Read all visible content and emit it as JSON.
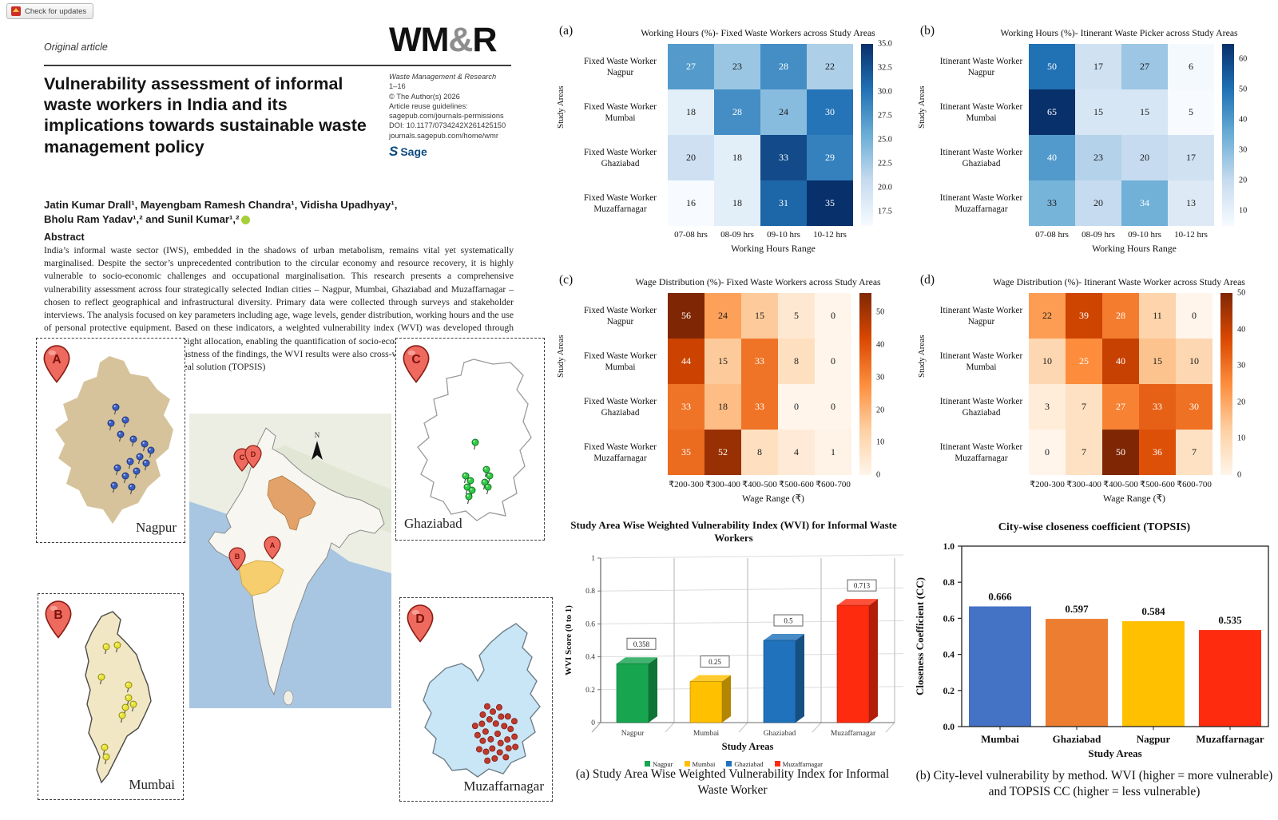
{
  "badge": {
    "label": "Check for updates"
  },
  "paper": {
    "article_type": "Original article",
    "logo": {
      "part1": "WM",
      "amp": "&",
      "part2": "R"
    },
    "journal_info": {
      "journal": "Waste Management & Research",
      "pages": "1–16",
      "copyright": "© The Author(s) 2026",
      "reuse": "Article reuse guidelines:",
      "permissions": "sagepub.com/journals-permissions",
      "doi": "DOI: 10.1177/0734242X261425150",
      "home": "journals.sagepub.com/home/wmr",
      "publisher_mark": "S",
      "publisher_name": "Sage"
    },
    "title": "Vulnerability assessment of informal waste workers in India and its implications towards sustainable waste management policy",
    "authors_line1": "Jatin Kumar Drall¹, Mayengbam Ramesh Chandra¹, Vidisha Upadhyay¹,",
    "authors_line2": "Bholu Ram Yadav¹,² and Sunil Kumar¹,²",
    "abstract_heading": "Abstract",
    "abstract_text": "India’s informal waste sector (IWS), embedded in the shadows of urban metabolism, remains vital yet systematically marginalised. Despite the sector’s unprecedented contribution to the circular economy and resource recovery, it is highly vulnerable to socio-economic challenges and occupational marginalisation. This research presents a comprehensive vulnerability assessment across four strategically selected Indian cities – Nagpur, Mumbai, Ghaziabad and Muzaffarnagar – chosen to reflect geographical and infrastructural diversity. Primary data were collected through surveys and stakeholder interviews. The analysis focused on key parameters including age, wage levels, gender distribution, working hours and the use of personal protective equipment. Based on these indicators, a weighted vulnerability index (WVI) was developed through normalisation and expert-informed weight allocation, enabling the quantification of socio-economic and occupational risks in the study areas. To strengthen the robustness of the findings, the WVI results were also cross-validated using the technique for order of preference by similarity to ideal solution (TOPSIS)",
    "maps": {
      "a": {
        "pin": "A",
        "label": "Nagpur"
      },
      "b": {
        "pin": "B",
        "label": "Mumbai"
      },
      "c": {
        "pin": "C",
        "label": "Ghaziabad"
      },
      "d": {
        "pin": "D",
        "label": "Muzaffarnagar"
      },
      "compass": "N"
    }
  },
  "chart_data": [
    {
      "panel": "(a)",
      "type": "heatmap",
      "colormap": "Blues",
      "title": "Working Hours (%)- Fixed Waste Workers across Study Areas",
      "xlabel": "Working Hours Range",
      "ylabel": "Study Areas",
      "columns": [
        "07-08 hrs",
        "08-09 hrs",
        "09-10 hrs",
        "10-12 hrs"
      ],
      "rows": [
        "Fixed Waste Worker Nagpur",
        "Fixed Waste Worker Mumbai",
        "Fixed Waste Worker Ghaziabad",
        "Fixed Waste Worker Muzaffarnagar"
      ],
      "values": [
        [
          27,
          23,
          28,
          22
        ],
        [
          18,
          28,
          24,
          30
        ],
        [
          20,
          18,
          33,
          29
        ],
        [
          16,
          18,
          31,
          35
        ]
      ],
      "colorbar_ticks": [
        "17.5",
        "20.0",
        "22.5",
        "25.0",
        "27.5",
        "30.0",
        "32.5",
        "35.0"
      ]
    },
    {
      "panel": "(b)",
      "type": "heatmap",
      "colormap": "Blues",
      "title": "Working Hours (%)- Itinerant Waste Picker across Study Areas",
      "xlabel": "Working Hours Range",
      "ylabel": "Study Areas",
      "columns": [
        "07-08 hrs",
        "08-09 hrs",
        "09-10 hrs",
        "10-12 hrs"
      ],
      "rows": [
        "Itinerant Waste Worker Nagpur",
        "Itinerant Waste Worker Mumbai",
        "Itinerant Waste Worker Ghaziabad",
        "Itinerant Waste Worker Muzaffarnagar"
      ],
      "values": [
        [
          50,
          17,
          27,
          6
        ],
        [
          65,
          15,
          15,
          5
        ],
        [
          40,
          23,
          20,
          17
        ],
        [
          33,
          20,
          34,
          13
        ]
      ],
      "colorbar_ticks": [
        "10",
        "20",
        "30",
        "40",
        "50",
        "60"
      ]
    },
    {
      "panel": "(c)",
      "type": "heatmap",
      "colormap": "Oranges",
      "title": "Wage Distribution (%)- Fixed Waste Workers across Study Areas",
      "xlabel": "Wage Range (₹)",
      "ylabel": "Study Areas",
      "columns": [
        "₹200-300",
        "₹300-400",
        "₹400-500",
        "₹500-600",
        "₹600-700"
      ],
      "rows": [
        "Fixed Waste Worker Nagpur",
        "Fixed Waste Worker Mumbai",
        "Fixed Waste Worker Ghaziabad",
        "Fixed Waste Worker Muzaffarnagar"
      ],
      "values": [
        [
          56,
          24,
          15,
          5,
          0
        ],
        [
          44,
          15,
          33,
          8,
          0
        ],
        [
          33,
          18,
          33,
          0,
          0
        ],
        [
          35,
          52,
          8,
          4,
          1
        ]
      ],
      "colorbar_ticks": [
        "0",
        "10",
        "20",
        "30",
        "40",
        "50"
      ]
    },
    {
      "panel": "(d)",
      "type": "heatmap",
      "colormap": "Oranges",
      "title": "Wage Distribution (%)- Itinerant Waste Worker across Study Areas",
      "xlabel": "Wage Range (₹)",
      "ylabel": "Study Areas",
      "columns": [
        "₹200-300",
        "₹300-400",
        "₹400-500",
        "₹500-600",
        "₹600-700"
      ],
      "rows": [
        "Itinerant Waste Worker Nagpur",
        "Itinerant Waste Worker Mumbai",
        "Itinerant Waste Worker Ghaziabad",
        "Itinerant Waste Worker Muzaffarnagar"
      ],
      "values": [
        [
          22,
          39,
          28,
          11,
          0
        ],
        [
          10,
          25,
          40,
          15,
          10
        ],
        [
          3,
          7,
          27,
          33,
          30
        ],
        [
          0,
          7,
          50,
          36,
          7
        ]
      ],
      "colorbar_ticks": [
        "0",
        "10",
        "20",
        "30",
        "40",
        "50"
      ]
    },
    {
      "type": "bar3d",
      "title": "Study Area Wise Weighted Vulnerability Index (WVI) for Informal Waste Workers",
      "categories": [
        "Nagpur",
        "Mumbai",
        "Ghaziabad",
        "Muzaffarnagar"
      ],
      "values": [
        0.358,
        0.25,
        0.5,
        0.713
      ],
      "value_labels": [
        "0.358",
        "0.25",
        "0.5",
        "0.713"
      ],
      "colors": [
        "#17a550",
        "#ffc000",
        "#1f72bb",
        "#ff2b0f"
      ],
      "ylabel": "WVI Score (0 to 1)",
      "xlabel": "Study Areas",
      "yticks": [
        "0",
        "0.2",
        "0.4",
        "0.6",
        "0.8",
        "1"
      ],
      "ylim": [
        0,
        1
      ]
    },
    {
      "type": "bar",
      "title": "City-wise closeness coefficient (TOPSIS)",
      "categories": [
        "Mumbai",
        "Ghaziabad",
        "Nagpur",
        "Muzaffarnagar"
      ],
      "values": [
        0.666,
        0.597,
        0.584,
        0.535
      ],
      "value_labels": [
        "0.666",
        "0.597",
        "0.584",
        "0.535"
      ],
      "colors": [
        "#4472c4",
        "#ed7d31",
        "#ffc000",
        "#ff2b0f"
      ],
      "ylabel": "Closeness Coefficient (CC)",
      "xlabel": "Study Areas",
      "yticks": [
        "0.0",
        "0.2",
        "0.4",
        "0.6",
        "0.8",
        "1.0"
      ],
      "ylim": [
        0,
        1
      ]
    }
  ],
  "captions": {
    "a": "(a) Study Area Wise Weighted Vulnerability Index for Informal Waste Worker",
    "b": "(b) City-level vulnerability by method. WVI (higher = more vulnerable) and TOPSIS CC (higher = less vulnerable)"
  }
}
